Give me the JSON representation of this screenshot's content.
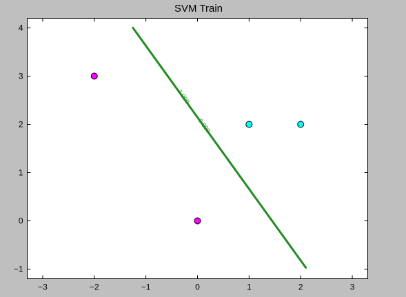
{
  "chart_data": {
    "type": "scatter",
    "title": "SVM Train",
    "xlabel": "",
    "ylabel": "",
    "xlim": [
      -3.3,
      3.3
    ],
    "ylim": [
      -1.2,
      4.2
    ],
    "xticks": [
      -3,
      -2,
      -1,
      0,
      1,
      2,
      3
    ],
    "yticks": [
      -1,
      0,
      1,
      2,
      3,
      4
    ],
    "xtick_labels": [
      "−3",
      "−2",
      "−1",
      "0",
      "1",
      "2",
      "3"
    ],
    "ytick_labels": [
      "−1",
      "0",
      "1",
      "2",
      "3",
      "4"
    ],
    "grid": false,
    "legend": "none",
    "series": [
      {
        "color": "#ff00ff",
        "marker": "circle",
        "points": [
          {
            "x": -2,
            "y": 3
          },
          {
            "x": 0,
            "y": 0
          }
        ]
      },
      {
        "color": "#00ffff",
        "marker": "circle",
        "points": [
          {
            "x": 1,
            "y": 2
          },
          {
            "x": 2,
            "y": 2
          }
        ]
      }
    ],
    "decision_boundary": {
      "type": "line",
      "color": "#228b22",
      "points": [
        {
          "x": -1.25,
          "y": 4.0
        },
        {
          "x": 2.1,
          "y": -0.97
        }
      ]
    },
    "contour_labels": [
      {
        "text": "1.000",
        "x": -0.3,
        "y": 2.55
      },
      {
        "text": "0.000",
        "x": 0.1,
        "y": 1.95
      }
    ]
  }
}
